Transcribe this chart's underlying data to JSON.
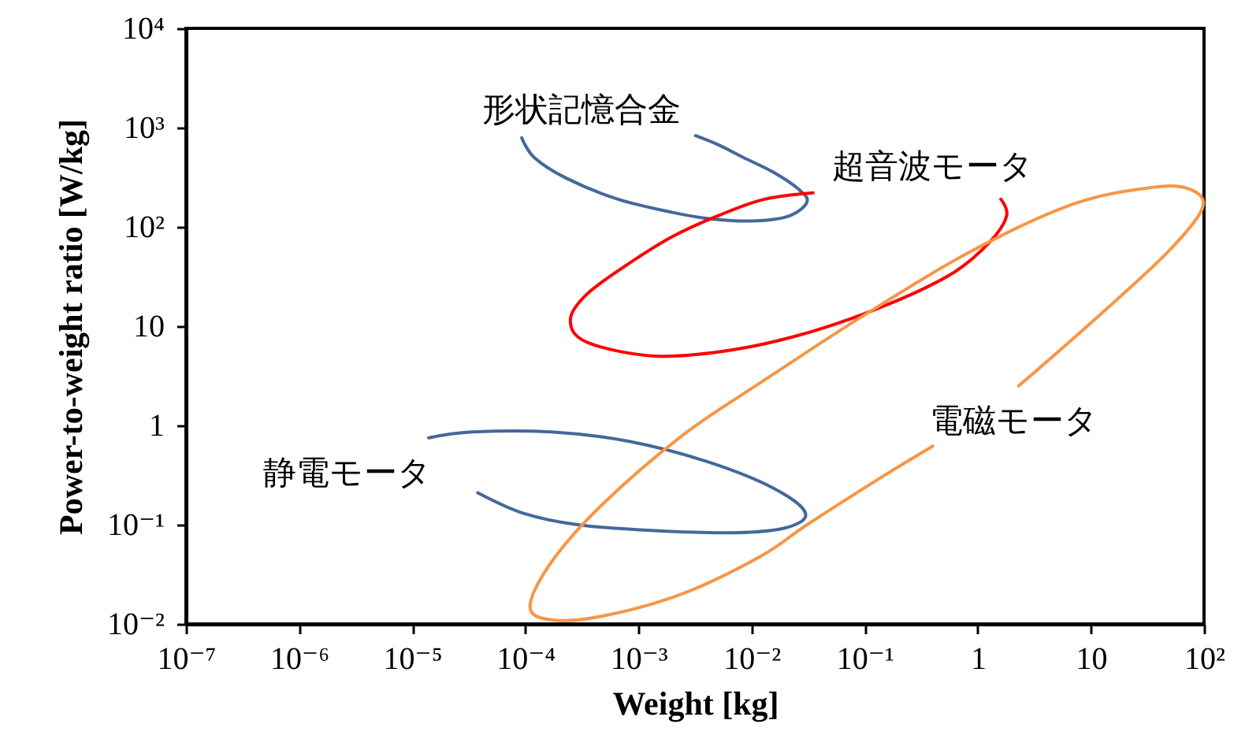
{
  "chart_data": {
    "type": "line",
    "xlabel": "Weight [kg]",
    "ylabel": "Power-to-weight ratio [W/kg]",
    "log": "xy",
    "grid": false,
    "xlim": [
      1e-07,
      100
    ],
    "ylim": [
      0.01,
      10000
    ],
    "xticks": [
      {
        "value": 1e-07,
        "label": "10⁻⁷"
      },
      {
        "value": 1e-06,
        "label": "10⁻⁶"
      },
      {
        "value": 1e-05,
        "label": "10⁻⁵"
      },
      {
        "value": 0.0001,
        "label": "10⁻⁴"
      },
      {
        "value": 0.001,
        "label": "10⁻³"
      },
      {
        "value": 0.01,
        "label": "10⁻²"
      },
      {
        "value": 0.1,
        "label": "10⁻¹"
      },
      1,
      10,
      {
        "value": 100,
        "label": "10²"
      }
    ],
    "yticks": [
      {
        "value": 0.01,
        "label": "10⁻²"
      },
      {
        "value": 0.1,
        "label": "10⁻¹"
      },
      1,
      10,
      {
        "value": 100,
        "label": "10²"
      },
      {
        "value": 1000,
        "label": "10³"
      },
      {
        "value": 10000,
        "label": "10⁴"
      }
    ],
    "series": [
      {
        "name": "形状記憶合金",
        "color": "#44689a",
        "x": [
          9.3e-05,
          0.00012,
          0.00023,
          0.00066,
          0.002,
          0.0045,
          0.011,
          0.022,
          0.031,
          0.026,
          0.016,
          0.0085,
          0.0051,
          0.0032
        ],
        "values": [
          790,
          500,
          310,
          190,
          140,
          120,
          115,
          130,
          180,
          240,
          350,
          500,
          670,
          830
        ]
      },
      {
        "name": "超音波モータ",
        "color": "#ff0000",
        "x": [
          0.035,
          0.013,
          0.0051,
          0.002,
          0.00083,
          0.00035,
          0.00025,
          0.00035,
          0.0014,
          0.007,
          0.035,
          0.17,
          0.62,
          1.3,
          1.8,
          1.6
        ],
        "values": [
          220,
          190,
          130,
          80,
          43,
          21,
          11.5,
          6.9,
          5.0,
          5.8,
          8.9,
          17,
          35,
          72,
          130,
          190
        ]
      },
      {
        "name": "静電モータ",
        "color": "#44689a",
        "x": [
          1.4e-05,
          3.4e-05,
          0.00017,
          0.00083,
          0.0041,
          0.016,
          0.03,
          0.02,
          0.007,
          0.0014,
          0.00029,
          9.7e-05,
          3.8e-05
        ],
        "values": [
          0.75,
          0.86,
          0.86,
          0.69,
          0.43,
          0.23,
          0.13,
          0.093,
          0.083,
          0.087,
          0.1,
          0.13,
          0.21
        ]
      },
      {
        "name": "電磁モータ",
        "color": "#f79646",
        "x": [
          2.3,
          12,
          48,
          97,
          75,
          35,
          7.0,
          0.85,
          0.1,
          0.012,
          0.0024,
          0.00048,
          0.00017,
          0.00011,
          0.00017,
          0.00048,
          0.0024,
          0.012,
          0.031,
          0.14,
          0.4
        ],
        "values": [
          2.5,
          13,
          56,
          155,
          240,
          250,
          170,
          56,
          13,
          2.7,
          0.78,
          0.16,
          0.042,
          0.015,
          0.011,
          0.012,
          0.02,
          0.048,
          0.1,
          0.3,
          0.62
        ]
      }
    ]
  }
}
